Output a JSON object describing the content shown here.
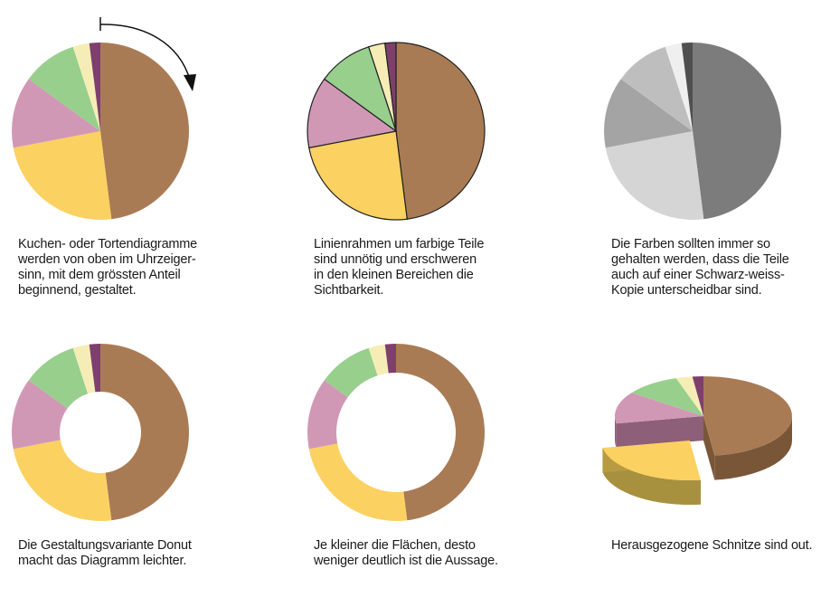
{
  "colors": {
    "brown": "#A97B54",
    "yellow": "#FBD162",
    "pink": "#D198B5",
    "green": "#98CF8D",
    "cream": "#F6EDB6",
    "purple": "#7E3F6D",
    "grays": [
      "#7C7C7C",
      "#D5D5D5",
      "#A4A4A4",
      "#BEBEBE",
      "#EFEFEF",
      "#4F4F4F"
    ]
  },
  "chart_data": [
    {
      "type": "pie",
      "variant": "pie",
      "values": [
        48,
        24,
        13,
        10,
        3,
        2
      ]
    },
    {
      "type": "pie",
      "variant": "pie-outlined",
      "values": [
        48,
        24,
        13,
        10,
        3,
        2
      ]
    },
    {
      "type": "pie",
      "variant": "pie-grayscale",
      "values": [
        48,
        24,
        13,
        10,
        3,
        2
      ]
    },
    {
      "type": "pie",
      "variant": "donut",
      "values": [
        48,
        24,
        13,
        10,
        3,
        2
      ]
    },
    {
      "type": "pie",
      "variant": "donut-thin",
      "values": [
        48,
        24,
        13,
        10,
        3,
        2
      ]
    },
    {
      "type": "pie",
      "variant": "pie-3d-exploded",
      "values": [
        48,
        24,
        13,
        10,
        3,
        2
      ]
    }
  ],
  "captions": [
    [
      "Kuchen- oder Tortendiagramme",
      "werden von oben im Uhrzeiger-",
      "sinn, mit dem grössten Anteil",
      "beginnend, gestaltet."
    ],
    [
      "Linienrahmen um farbige Teile",
      "sind unnötig und erschweren",
      "in den kleinen Bereichen die",
      "Sichtbarkeit."
    ],
    [
      "Die Farben sollten immer so",
      "gehalten werden, dass die Teile",
      "auch auf einer Schwarz-weiss-",
      "Kopie unterscheidbar sind."
    ],
    [
      "Die Gestaltungsvariante Donut",
      "macht das Diagramm leichter."
    ],
    [
      "Je kleiner die Flächen, desto",
      "weniger deutlich ist die Aussage."
    ],
    [
      "Herausgezogene Schnitze sind out."
    ]
  ]
}
